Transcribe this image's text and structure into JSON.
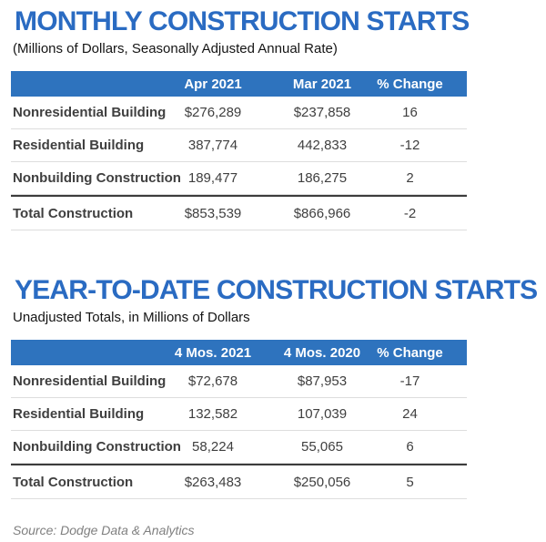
{
  "monthly": {
    "title": "MONTHLY CONSTRUCTION STARTS",
    "subtitle": "(Millions of Dollars, Seasonally Adjusted Annual Rate)",
    "columns": [
      "Apr 2021",
      "Mar 2021",
      "% Change"
    ],
    "rows": [
      {
        "label": "Nonresidential Building",
        "current": "$276,289",
        "previous": "$237,858",
        "change": "16"
      },
      {
        "label": "Residential Building",
        "current": "387,774",
        "previous": "442,833",
        "change": "-12"
      },
      {
        "label": "Nonbuilding Construction",
        "current": "189,477",
        "previous": "186,275",
        "change": "2"
      }
    ],
    "total": {
      "label": "Total Construction",
      "current": "$853,539",
      "previous": "$866,966",
      "change": "-2"
    }
  },
  "ytd": {
    "title": "YEAR-TO-DATE CONSTRUCTION STARTS",
    "subtitle": "Unadjusted Totals, in Millions of Dollars",
    "columns": [
      "4 Mos. 2021",
      "4 Mos. 2020",
      "% Change"
    ],
    "rows": [
      {
        "label": "Nonresidential Building",
        "current": "$72,678",
        "previous": "$87,953",
        "change": "-17"
      },
      {
        "label": "Residential Building",
        "current": "132,582",
        "previous": "107,039",
        "change": "24"
      },
      {
        "label": "Nonbuilding Construction",
        "current": "58,224",
        "previous": "55,065",
        "change": "6"
      }
    ],
    "total": {
      "label": "Total Construction",
      "current": "$263,483",
      "previous": "$250,056",
      "change": "5"
    }
  },
  "source": "Source: Dodge Data & Analytics",
  "colors": {
    "title_blue": "#2A6BC2",
    "header_blue": "#2E73BE"
  }
}
